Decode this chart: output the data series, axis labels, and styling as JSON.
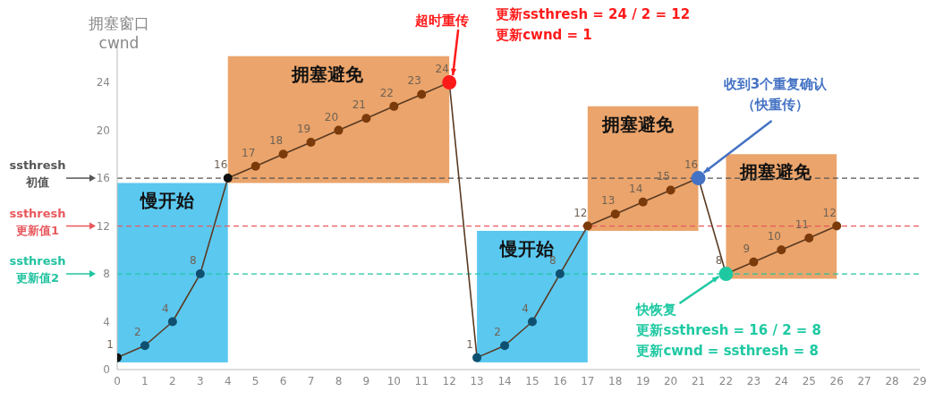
{
  "chart_data": {
    "type": "line",
    "ylabel": "拥塞窗口 cwnd",
    "x": [
      0,
      1,
      2,
      3,
      4,
      5,
      6,
      7,
      8,
      9,
      10,
      11,
      12,
      13,
      14,
      15,
      16,
      17,
      18,
      19,
      20,
      21,
      22,
      23,
      24,
      25,
      26
    ],
    "series": [
      {
        "color": "#5a3a22",
        "values": [
          1,
          2,
          4,
          8,
          16,
          17,
          18,
          19,
          20,
          21,
          22,
          23,
          24,
          1,
          2,
          4,
          8,
          12,
          13,
          14,
          15,
          16,
          8,
          9,
          10,
          11,
          12
        ],
        "colors": [
          "#111111",
          "#0f5070",
          "#0f5070",
          "#0f5070",
          "#111111",
          "#7a3a0a",
          "#7a3a0a",
          "#7a3a0a",
          "#7a3a0a",
          "#7a3a0a",
          "#7a3a0a",
          "#7a3a0a",
          "#ff1a1a",
          "#0f5070",
          "#0f5070",
          "#0f5070",
          "#0f5070",
          "#7a3a0a",
          "#7a3a0a",
          "#7a3a0a",
          "#7a3a0a",
          "#4472c4",
          "#1ec9a2",
          "#7a3a0a",
          "#7a3a0a",
          "#7a3a0a",
          "#7a3a0a"
        ]
      }
    ],
    "xlim": [
      0,
      29
    ],
    "xticks": [
      0,
      1,
      2,
      3,
      4,
      5,
      6,
      7,
      8,
      9,
      10,
      11,
      12,
      13,
      14,
      15,
      16,
      17,
      18,
      19,
      20,
      21,
      22,
      23,
      24,
      25,
      26,
      27,
      28,
      29
    ],
    "ylim": [
      0,
      27
    ],
    "yticks": [
      0,
      4,
      8,
      12,
      16,
      20,
      24
    ],
    "marker": "circle",
    "data_labels": true,
    "bands": [
      {
        "axis": "x",
        "from": 0,
        "to": 4,
        "label": "慢开始",
        "color": "#5bc8f0"
      },
      {
        "axis": "x",
        "from": 4,
        "to": 12,
        "label": "拥塞避免",
        "color": "#eba46b"
      },
      {
        "axis": "x",
        "from": 13,
        "to": 17,
        "label": "慢开始",
        "color": "#5bc8f0"
      },
      {
        "axis": "x",
        "from": 17,
        "to": 21,
        "label": "拥塞避免",
        "color": "#eba46b"
      },
      {
        "axis": "x",
        "from": 22,
        "to": 26,
        "label": "拥塞避免",
        "color": "#eba46b"
      }
    ],
    "ref_lines": [
      {
        "axis": "y",
        "value": 16,
        "label": "ssthresh 初值",
        "color": "#555555",
        "line_style": "dashed"
      },
      {
        "axis": "y",
        "value": 12,
        "label": "ssthresh 更新值1",
        "color": "#e8585d",
        "line_style": "dashed"
      },
      {
        "axis": "y",
        "value": 8,
        "label": "ssthresh 更新值2",
        "color": "#22c3a0",
        "line_style": "dashed"
      }
    ],
    "annotations": [
      {
        "text": "超时重传",
        "x": 12,
        "y": 24
      },
      "更新ssthresh = 24 / 2 = 12",
      "更新cwnd = 1",
      {
        "text": "收到3个重复确认（快重传）",
        "x": 21,
        "y": 16
      },
      {
        "text": "快恢复",
        "x": 22,
        "y": 8
      },
      "更新ssthresh = 16 / 2 = 8",
      "更新cwnd = ssthresh = 8"
    ]
  }
}
